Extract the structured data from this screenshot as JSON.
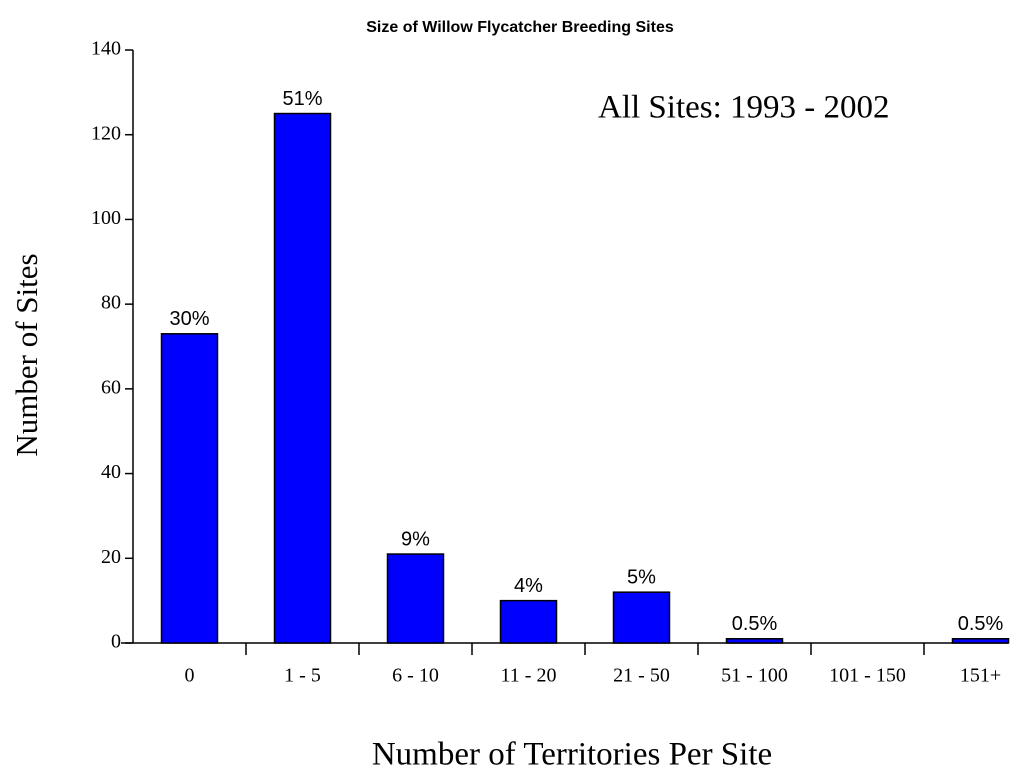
{
  "chart_data": {
    "type": "bar",
    "title": "Size of Willow Flycatcher Breeding Sites",
    "annotation": "All Sites:  1993 - 2002",
    "x_label": "Number of Territories Per Site",
    "y_label": "Number of Sites",
    "categories": [
      "0",
      "1 - 5",
      "6 - 10",
      "11 - 20",
      "21 - 50",
      "51 - 100",
      "101 - 150",
      "151+"
    ],
    "values": [
      73,
      125,
      21,
      10,
      12,
      1,
      0,
      1
    ],
    "percent_labels": [
      "30%",
      "51%",
      "9%",
      "4%",
      "5%",
      "0.5%",
      null,
      "0.5%"
    ],
    "color": "#0000ff",
    "ylim": [
      0,
      140
    ],
    "yticks": [
      0,
      20,
      40,
      60,
      80,
      100,
      120,
      140
    ],
    "grid": false
  }
}
